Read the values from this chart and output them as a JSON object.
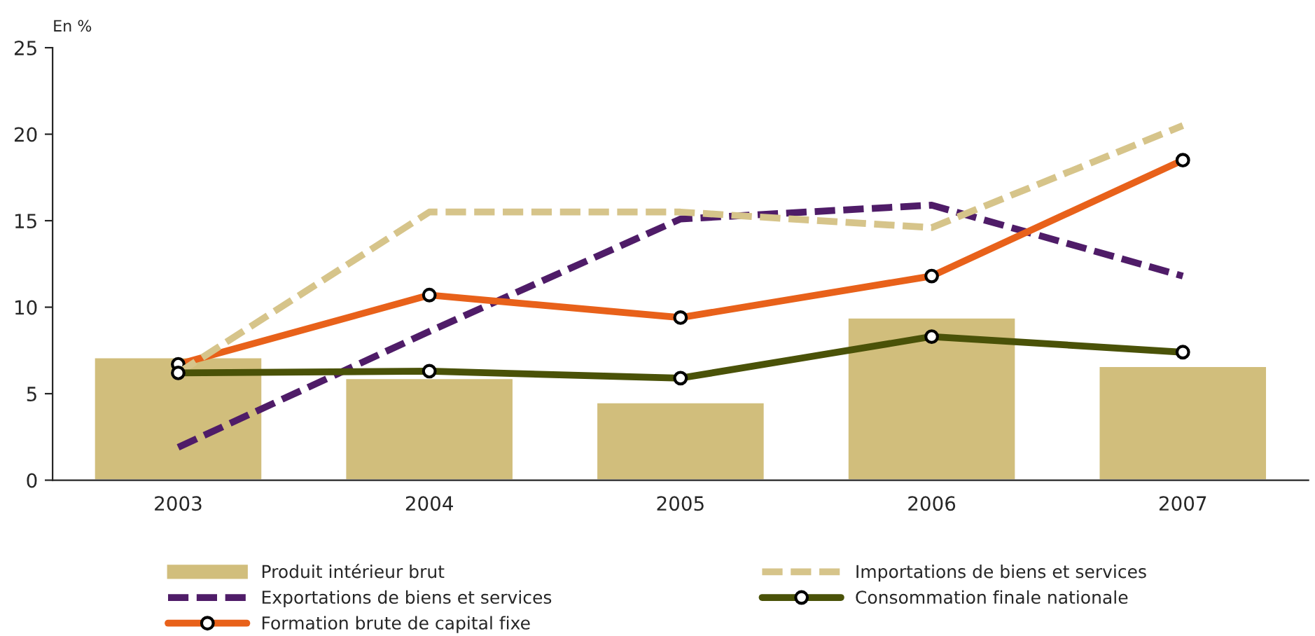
{
  "chart_data": {
    "type": "bar",
    "ylabel": "En %",
    "categories": [
      "2003",
      "2004",
      "2005",
      "2006",
      "2007"
    ],
    "ylim": [
      0,
      25
    ],
    "yticks": [
      0,
      5,
      10,
      15,
      20,
      25
    ],
    "grid": false,
    "legend": "bottom",
    "series": [
      {
        "name": "Produit intérieur brut",
        "color": "#d1be7c",
        "values": [
          7.1,
          5.9,
          4.5,
          9.4,
          6.6
        ]
      },
      {
        "name": "Exportations de biens et services",
        "type": "line",
        "color": "#4f1c68",
        "line_style": "dashed",
        "marker": "none",
        "values": [
          1.9,
          8.6,
          15.1,
          15.9,
          11.8
        ]
      },
      {
        "name": "Formation brute de capital fixe",
        "type": "line",
        "color": "#e8611a",
        "line_style": "solid",
        "marker": "circle",
        "values": [
          6.7,
          10.7,
          9.4,
          11.8,
          18.5
        ]
      },
      {
        "name": "Importations de biens et services",
        "type": "line",
        "color": "#d6c48a",
        "line_style": "dashed",
        "marker": "none",
        "values": [
          6.2,
          15.5,
          15.5,
          14.6,
          20.5
        ]
      },
      {
        "name": "Consommation finale nationale",
        "type": "line",
        "color": "#4a5208",
        "line_style": "solid",
        "marker": "circle",
        "values": [
          6.2,
          6.3,
          5.9,
          8.3,
          7.4
        ]
      }
    ]
  }
}
